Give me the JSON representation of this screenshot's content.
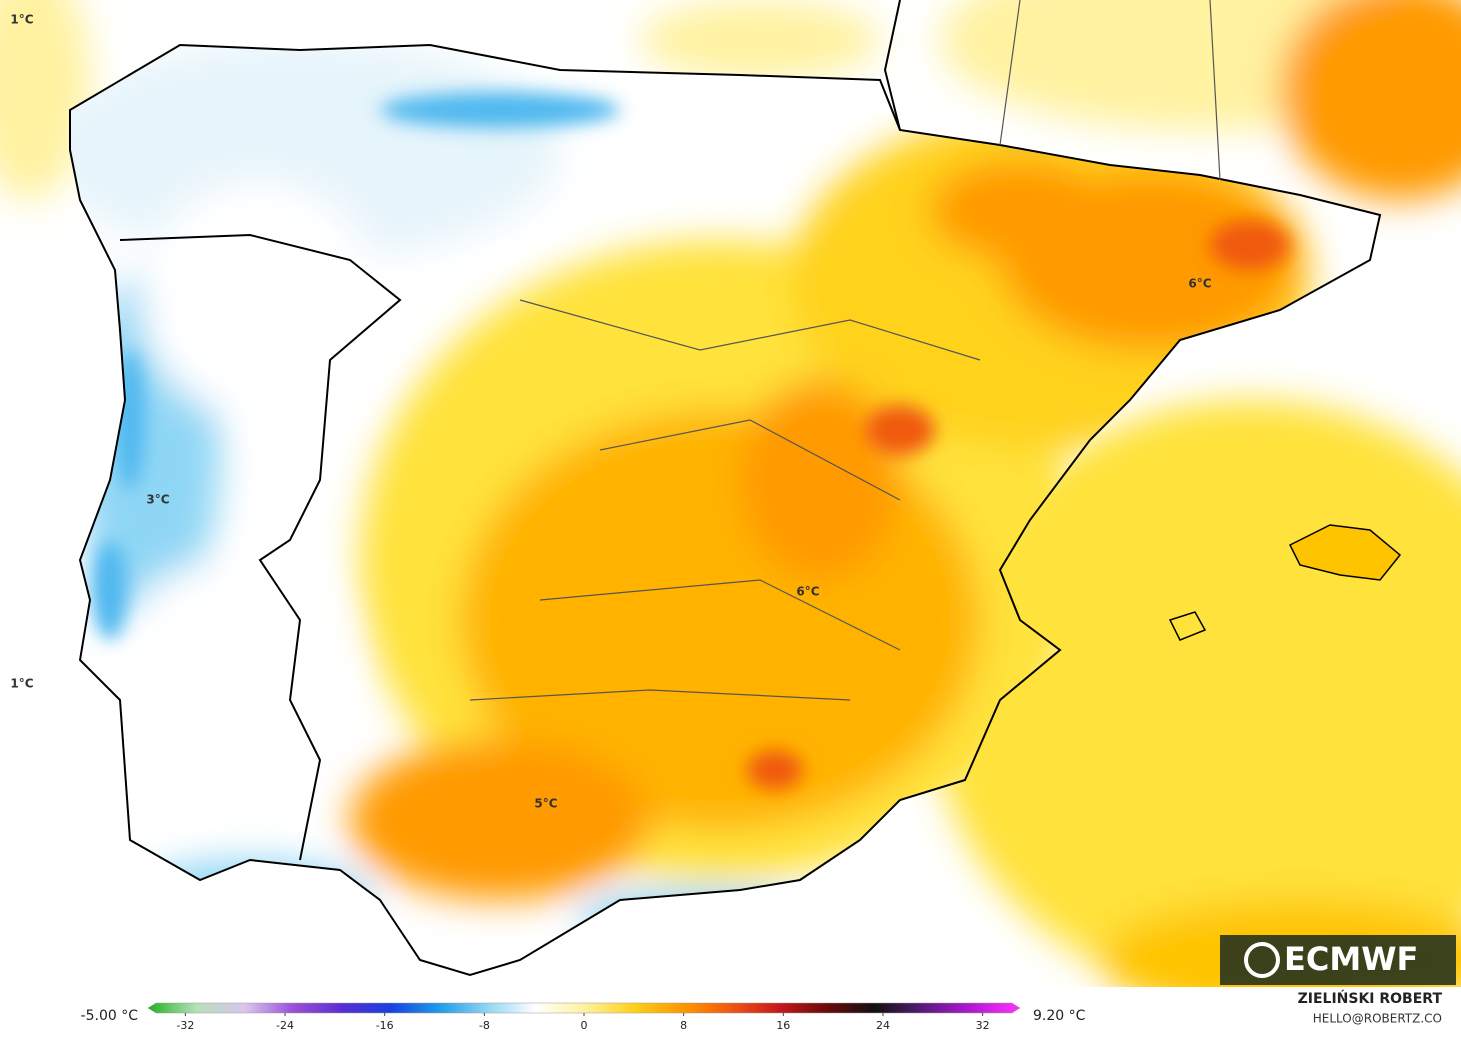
{
  "map": {
    "contour_labels": [
      "1°C",
      "1°C",
      "3°C",
      "6°C",
      "6°C",
      "5°C"
    ]
  },
  "colorbar": {
    "min_label": "-5.00 °C",
    "max_label": "9.20 °C",
    "lim": [
      -35,
      35
    ],
    "ticks": [
      -32,
      -24,
      -16,
      -8,
      0,
      8,
      16,
      24,
      32
    ],
    "colors": [
      "#1fb21f",
      "#b8e0b8",
      "#d9c6ec",
      "#9a4fd8",
      "#5a2fd0",
      "#1a3fe0",
      "#1f9ae8",
      "#8fd6f5",
      "#ffffff",
      "#fff2a0",
      "#ffd21a",
      "#ff9a00",
      "#f05a10",
      "#c81a1a",
      "#6a0a0a",
      "#111111",
      "#5a1a7a",
      "#b01ad0",
      "#ff33ff"
    ]
  },
  "credits": {
    "author": "ZIELIŃSKI ROBERT",
    "contact": "HELLO@ROBERTZ.CO",
    "logo": "ECMWF"
  }
}
